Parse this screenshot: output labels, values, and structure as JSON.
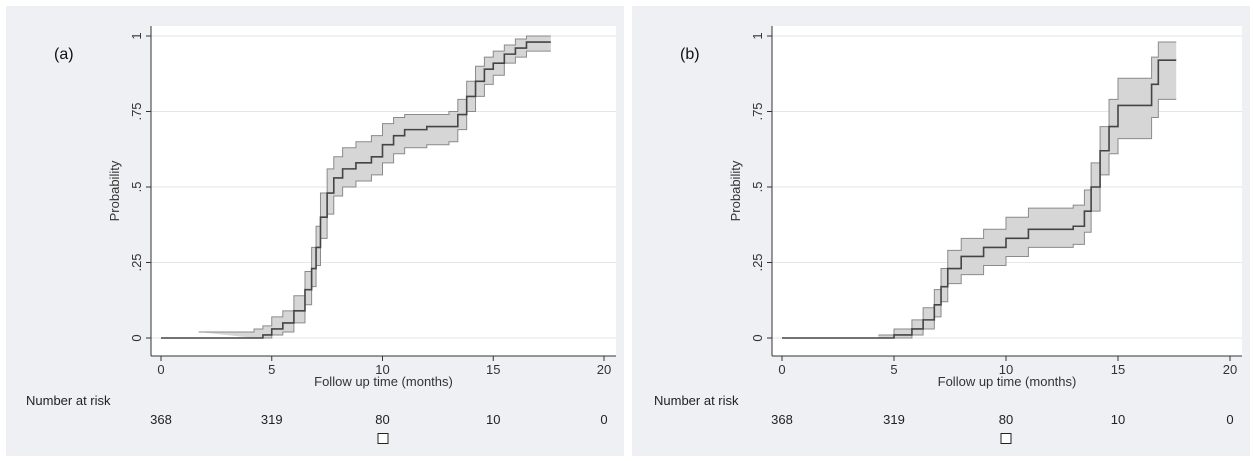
{
  "chart_data": [
    {
      "type": "line",
      "panel_label": "(a)",
      "xlabel": "Follow up time (months)",
      "ylabel": "Probability",
      "xlim": [
        0,
        20
      ],
      "ylim": [
        0,
        1
      ],
      "x_ticks": [
        "0",
        "5",
        "10",
        "15",
        "20"
      ],
      "y_ticks": [
        "0",
        ".25",
        ".5",
        ".75",
        "1"
      ],
      "grid": true,
      "series": [
        {
          "points": [
            [
              0,
              0
            ],
            [
              1.7,
              0
            ],
            [
              4.2,
              0
            ],
            [
              4.6,
              0.01
            ],
            [
              5.0,
              0.03
            ],
            [
              5.5,
              0.05
            ],
            [
              6.0,
              0.09
            ],
            [
              6.5,
              0.16
            ],
            [
              6.8,
              0.23
            ],
            [
              7.0,
              0.3
            ],
            [
              7.2,
              0.4
            ],
            [
              7.5,
              0.48
            ],
            [
              7.8,
              0.53
            ],
            [
              8.2,
              0.56
            ],
            [
              8.8,
              0.58
            ],
            [
              9.5,
              0.6
            ],
            [
              10.0,
              0.64
            ],
            [
              10.5,
              0.67
            ],
            [
              11.0,
              0.69
            ],
            [
              12.0,
              0.7
            ],
            [
              13.0,
              0.7
            ],
            [
              13.4,
              0.74
            ],
            [
              13.8,
              0.8
            ],
            [
              14.2,
              0.85
            ],
            [
              14.6,
              0.89
            ],
            [
              15.0,
              0.91
            ],
            [
              15.5,
              0.94
            ],
            [
              16.0,
              0.96
            ],
            [
              16.5,
              0.98
            ],
            [
              17.6,
              0.98
            ]
          ],
          "ci_upper": [
            [
              1.7,
              0.02
            ],
            [
              4.2,
              0.03
            ],
            [
              4.6,
              0.04
            ],
            [
              5.0,
              0.07
            ],
            [
              5.5,
              0.09
            ],
            [
              6.0,
              0.14
            ],
            [
              6.5,
              0.22
            ],
            [
              6.8,
              0.3
            ],
            [
              7.0,
              0.37
            ],
            [
              7.2,
              0.48
            ],
            [
              7.5,
              0.56
            ],
            [
              7.8,
              0.6
            ],
            [
              8.2,
              0.63
            ],
            [
              8.8,
              0.65
            ],
            [
              9.5,
              0.67
            ],
            [
              10.0,
              0.71
            ],
            [
              10.5,
              0.73
            ],
            [
              11.0,
              0.74
            ],
            [
              12.0,
              0.74
            ],
            [
              13.0,
              0.75
            ],
            [
              13.4,
              0.79
            ],
            [
              13.8,
              0.85
            ],
            [
              14.2,
              0.9
            ],
            [
              14.6,
              0.93
            ],
            [
              15.0,
              0.95
            ],
            [
              15.5,
              0.97
            ],
            [
              16.0,
              0.99
            ],
            [
              16.5,
              1.0
            ],
            [
              17.6,
              1.0
            ]
          ],
          "ci_lower": [
            [
              4.2,
              0.0
            ],
            [
              4.6,
              0.0
            ],
            [
              5.0,
              0.01
            ],
            [
              5.5,
              0.02
            ],
            [
              6.0,
              0.05
            ],
            [
              6.5,
              0.11
            ],
            [
              6.8,
              0.17
            ],
            [
              7.0,
              0.24
            ],
            [
              7.2,
              0.33
            ],
            [
              7.5,
              0.41
            ],
            [
              7.8,
              0.47
            ],
            [
              8.2,
              0.5
            ],
            [
              8.8,
              0.52
            ],
            [
              9.5,
              0.54
            ],
            [
              10.0,
              0.58
            ],
            [
              10.5,
              0.61
            ],
            [
              11.0,
              0.63
            ],
            [
              12.0,
              0.64
            ],
            [
              13.0,
              0.65
            ],
            [
              13.4,
              0.69
            ],
            [
              13.8,
              0.75
            ],
            [
              14.2,
              0.8
            ],
            [
              14.6,
              0.84
            ],
            [
              15.0,
              0.87
            ],
            [
              15.5,
              0.91
            ],
            [
              16.0,
              0.93
            ],
            [
              16.5,
              0.95
            ],
            [
              17.6,
              0.95
            ]
          ]
        }
      ],
      "risk_table": {
        "title": "Number at risk",
        "at": [
          0,
          5,
          10,
          15,
          20
        ],
        "values": [
          "368",
          "319",
          "80",
          "10",
          "0"
        ],
        "marker_at": 10
      }
    },
    {
      "type": "line",
      "panel_label": "(b)",
      "xlabel": "Follow up time (months)",
      "ylabel": "Probability",
      "xlim": [
        0,
        20
      ],
      "ylim": [
        0,
        1
      ],
      "x_ticks": [
        "0",
        "5",
        "10",
        "15",
        "20"
      ],
      "y_ticks": [
        "0",
        ".25",
        ".5",
        ".75",
        "1"
      ],
      "grid": true,
      "series": [
        {
          "points": [
            [
              0,
              0
            ],
            [
              4.3,
              0
            ],
            [
              5.0,
              0.01
            ],
            [
              5.8,
              0.03
            ],
            [
              6.3,
              0.06
            ],
            [
              6.8,
              0.11
            ],
            [
              7.1,
              0.17
            ],
            [
              7.4,
              0.23
            ],
            [
              8.0,
              0.27
            ],
            [
              9.0,
              0.3
            ],
            [
              10.0,
              0.33
            ],
            [
              11.0,
              0.36
            ],
            [
              12.0,
              0.36
            ],
            [
              13.0,
              0.37
            ],
            [
              13.5,
              0.42
            ],
            [
              13.8,
              0.5
            ],
            [
              14.2,
              0.62
            ],
            [
              14.6,
              0.7
            ],
            [
              15.0,
              0.77
            ],
            [
              16.0,
              0.77
            ],
            [
              16.5,
              0.84
            ],
            [
              16.8,
              0.92
            ],
            [
              17.6,
              0.92
            ]
          ],
          "ci_upper": [
            [
              4.3,
              0.01
            ],
            [
              5.0,
              0.03
            ],
            [
              5.8,
              0.06
            ],
            [
              6.3,
              0.1
            ],
            [
              6.8,
              0.16
            ],
            [
              7.1,
              0.23
            ],
            [
              7.4,
              0.29
            ],
            [
              8.0,
              0.33
            ],
            [
              9.0,
              0.36
            ],
            [
              10.0,
              0.4
            ],
            [
              11.0,
              0.43
            ],
            [
              12.0,
              0.43
            ],
            [
              13.0,
              0.44
            ],
            [
              13.5,
              0.49
            ],
            [
              13.8,
              0.58
            ],
            [
              14.2,
              0.7
            ],
            [
              14.6,
              0.79
            ],
            [
              15.0,
              0.86
            ],
            [
              16.0,
              0.86
            ],
            [
              16.5,
              0.93
            ],
            [
              16.8,
              0.98
            ],
            [
              17.6,
              0.98
            ]
          ],
          "ci_lower": [
            [
              4.3,
              0.0
            ],
            [
              5.0,
              0.0
            ],
            [
              5.8,
              0.01
            ],
            [
              6.3,
              0.03
            ],
            [
              6.8,
              0.07
            ],
            [
              7.1,
              0.12
            ],
            [
              7.4,
              0.18
            ],
            [
              8.0,
              0.21
            ],
            [
              9.0,
              0.24
            ],
            [
              10.0,
              0.27
            ],
            [
              11.0,
              0.3
            ],
            [
              12.0,
              0.3
            ],
            [
              13.0,
              0.31
            ],
            [
              13.5,
              0.35
            ],
            [
              13.8,
              0.42
            ],
            [
              14.2,
              0.54
            ],
            [
              14.6,
              0.61
            ],
            [
              15.0,
              0.66
            ],
            [
              16.0,
              0.66
            ],
            [
              16.5,
              0.73
            ],
            [
              16.8,
              0.79
            ],
            [
              17.6,
              0.79
            ]
          ]
        }
      ],
      "risk_table": {
        "title": "Number at risk",
        "at": [
          0,
          5,
          10,
          15,
          20
        ],
        "values": [
          "368",
          "319",
          "80",
          "10",
          "0"
        ],
        "marker_at": 10
      }
    }
  ]
}
